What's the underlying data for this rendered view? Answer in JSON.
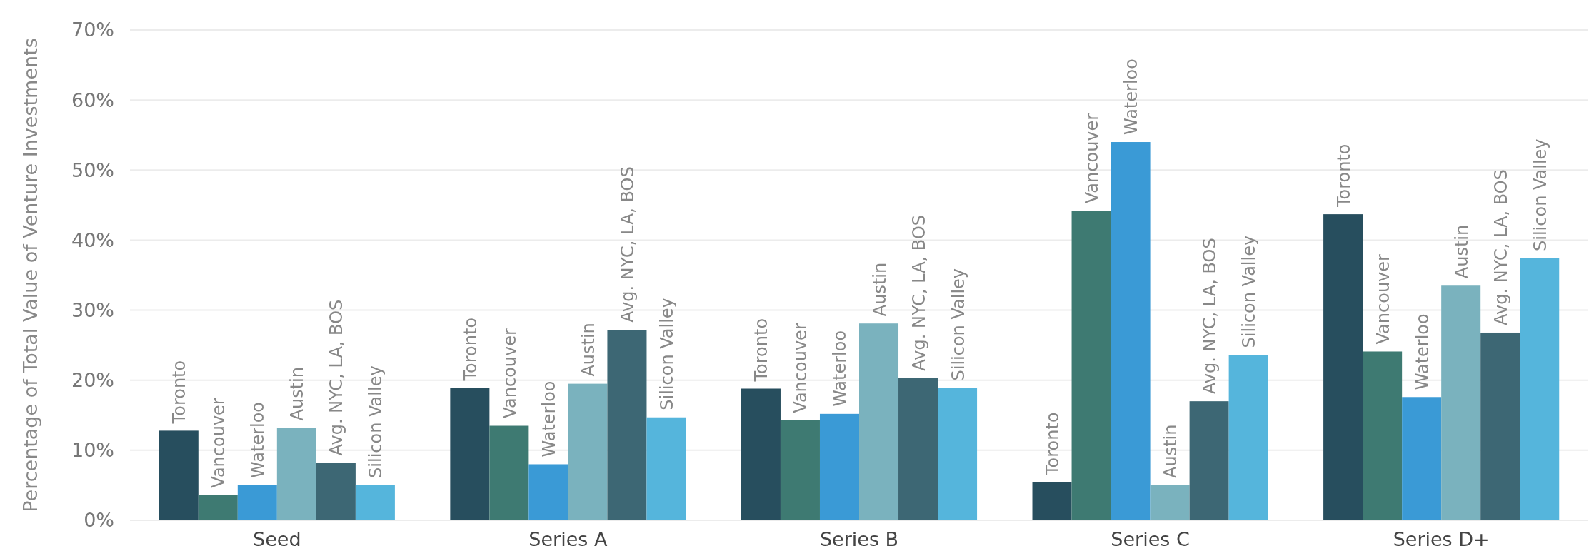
{
  "chart_data": {
    "type": "bar",
    "ylabel": "Percentage of Total Value of Venture Investments",
    "categories": [
      "Seed",
      "Series A",
      "Series B",
      "Series C",
      "Series D+"
    ],
    "series": [
      {
        "name": "Toronto",
        "color": "#274e5e",
        "values": [
          12.8,
          18.9,
          18.8,
          5.4,
          43.7
        ]
      },
      {
        "name": "Vancouver",
        "color": "#3e7a72",
        "values": [
          3.6,
          13.5,
          14.3,
          44.2,
          24.1
        ]
      },
      {
        "name": "Waterloo",
        "color": "#3a9ad6",
        "values": [
          5.0,
          8.0,
          15.2,
          54.0,
          17.6
        ]
      },
      {
        "name": "Austin",
        "color": "#7ab2be",
        "values": [
          13.2,
          19.5,
          28.1,
          5.0,
          33.5
        ]
      },
      {
        "name": "Avg. NYC, LA, BOS",
        "color": "#3d6774",
        "values": [
          8.2,
          27.2,
          20.3,
          17.0,
          26.8
        ]
      },
      {
        "name": "Silicon Valley",
        "color": "#55b5dc",
        "values": [
          5.0,
          14.7,
          18.9,
          23.6,
          37.4
        ]
      }
    ],
    "ylim": [
      0,
      70
    ],
    "yticks": [
      {
        "value": 0,
        "label": "0%"
      },
      {
        "value": 10,
        "label": "10%"
      },
      {
        "value": 20,
        "label": "20%"
      },
      {
        "value": 30,
        "label": "30%"
      },
      {
        "value": 40,
        "label": "40%"
      },
      {
        "value": 50,
        "label": "50%"
      },
      {
        "value": 60,
        "label": "60%"
      },
      {
        "value": 70,
        "label": "70%"
      }
    ],
    "grid": "y",
    "legend": false
  }
}
